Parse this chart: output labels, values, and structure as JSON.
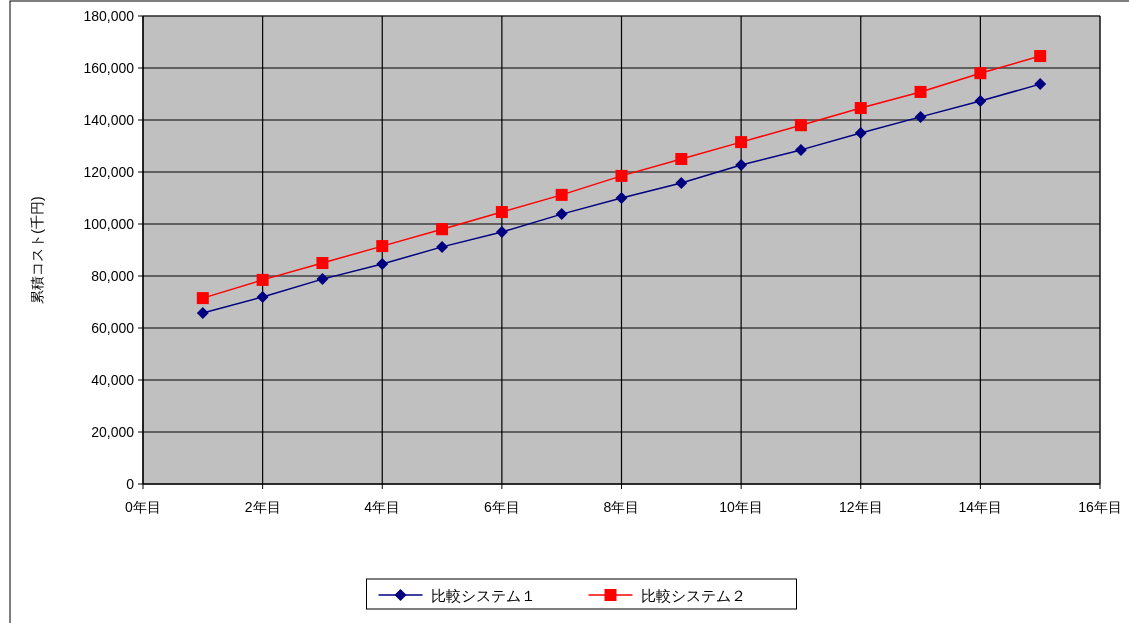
{
  "chart_data": {
    "type": "line",
    "ylabel": "累積コスト(千円)",
    "grid": true,
    "legend": "bottom",
    "line_style": "solid",
    "xlim": [
      0,
      16
    ],
    "xticks": [
      {
        "value": 0,
        "label": "0年目"
      },
      {
        "value": 2,
        "label": "2年目"
      },
      {
        "value": 4,
        "label": "4年目"
      },
      {
        "value": 6,
        "label": "6年目"
      },
      {
        "value": 8,
        "label": "8年目"
      },
      {
        "value": 10,
        "label": "10年目"
      },
      {
        "value": 12,
        "label": "12年目"
      },
      {
        "value": 14,
        "label": "14年目"
      },
      {
        "value": 16,
        "label": "16年目"
      }
    ],
    "ylim": [
      0,
      180000
    ],
    "yticks": [
      0,
      {
        "value": 20000,
        "label": "20,000"
      },
      {
        "value": 40000,
        "label": "40,000"
      },
      {
        "value": 60000,
        "label": "60,000"
      },
      {
        "value": 80000,
        "label": "80,000"
      },
      {
        "value": 100000,
        "label": "100,000"
      },
      {
        "value": 120000,
        "label": "120,000"
      },
      {
        "value": 140000,
        "label": "140,000"
      },
      {
        "value": 160000,
        "label": "160,000"
      },
      {
        "value": 180000,
        "label": "180,000"
      }
    ],
    "x": [
      1,
      2,
      3,
      4,
      5,
      6,
      7,
      8,
      9,
      10,
      11,
      12,
      13,
      14,
      15
    ],
    "series": [
      {
        "name": "比較システム１",
        "color": "#000080",
        "marker": "diamond",
        "values": [
          65800,
          71900,
          78800,
          84600,
          91200,
          96900,
          103800,
          110000,
          115800,
          122700,
          128500,
          135000,
          141200,
          147300,
          153800
        ]
      },
      {
        "name": "比較システム２",
        "color": "#ff0000",
        "marker": "square",
        "values": [
          71500,
          78500,
          85000,
          91500,
          98000,
          104600,
          111200,
          118500,
          125000,
          131500,
          138000,
          144600,
          150800,
          158000,
          164600
        ]
      }
    ]
  }
}
